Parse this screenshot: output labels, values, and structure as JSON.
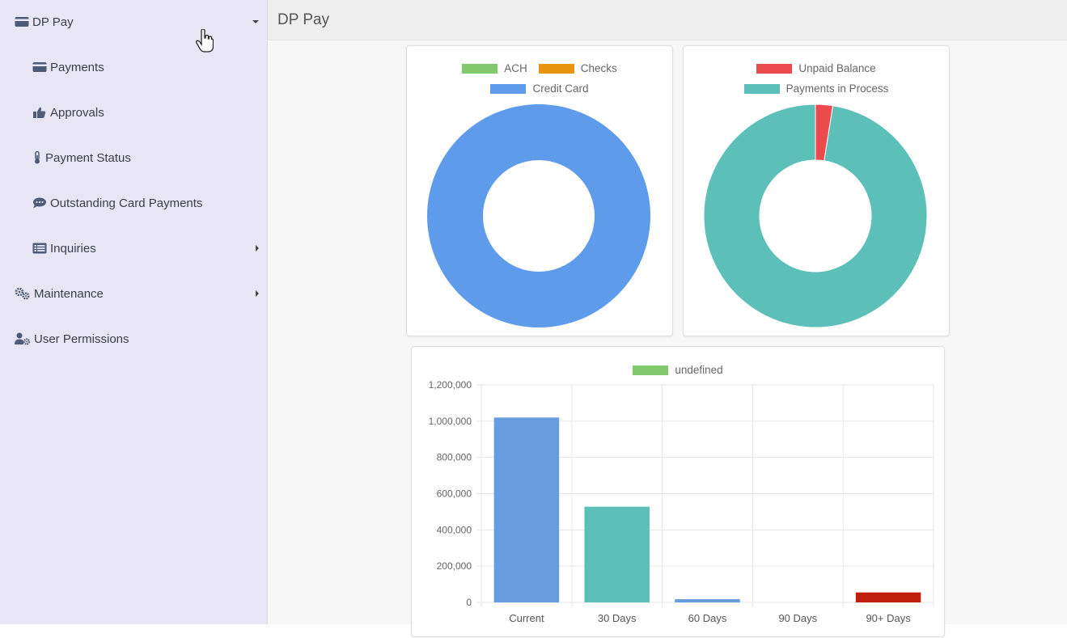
{
  "sidebar": {
    "items": [
      {
        "label": "DP Pay",
        "icon": "credit-card-icon",
        "arrow": "caret-down-icon"
      },
      {
        "label": "Payments",
        "icon": "credit-card-icon"
      },
      {
        "label": "Approvals",
        "icon": "thumbs-up-icon"
      },
      {
        "label": "Payment Status",
        "icon": "thermometer-icon"
      },
      {
        "label": "Outstanding Card Payments",
        "icon": "comment-icon"
      },
      {
        "label": "Inquiries",
        "icon": "list-icon",
        "arrow": "caret-right-icon"
      },
      {
        "label": "Maintenance",
        "icon": "cogs-icon",
        "arrow": "caret-right-icon"
      },
      {
        "label": "User Permissions",
        "icon": "user-cog-icon"
      }
    ]
  },
  "header": {
    "title": "DP Pay"
  },
  "chart_data": [
    {
      "type": "pie",
      "legend": [
        "ACH",
        "Checks",
        "Credit Card"
      ],
      "colors": [
        "#82c96d",
        "#e8940f",
        "#5f9beb"
      ],
      "values": [
        0,
        0,
        100
      ]
    },
    {
      "type": "pie",
      "legend": [
        "Unpaid Balance",
        "Payments in Process"
      ],
      "colors": [
        "#ec4a4d",
        "#5cc0b8"
      ],
      "values": [
        2.5,
        97.5
      ]
    },
    {
      "type": "bar",
      "legend": [
        "undefined"
      ],
      "legend_color": "#82c96d",
      "categories": [
        "Current",
        "30 Days",
        "60 Days",
        "90 Days",
        "90+ Days"
      ],
      "values": [
        1020000,
        528000,
        18000,
        0,
        55000
      ],
      "colors": [
        "#679ddf",
        "#5cc0b8",
        "#679ddf",
        "#5cc0b8",
        "#c11f0d"
      ],
      "yticks": [
        "0",
        "200,000",
        "400,000",
        "600,000",
        "800,000",
        "1,000,000",
        "1,200,000"
      ],
      "ylim": [
        0,
        1200000
      ]
    }
  ]
}
